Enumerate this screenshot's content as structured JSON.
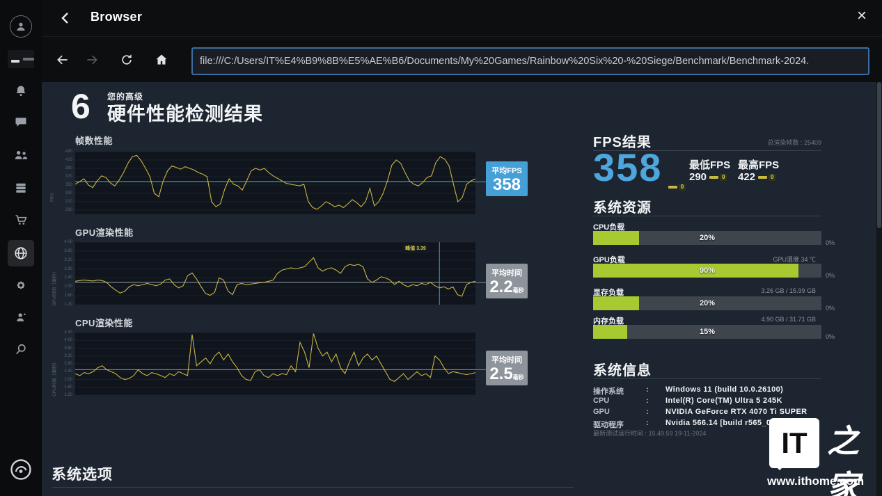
{
  "window": {
    "title": "Browser",
    "close_glyph": "×"
  },
  "nav": {
    "url": "file:///C:/Users/IT%E4%B9%8B%E5%AE%B6/Documents/My%20Games/Rainbow%20Six%20-%20Siege/Benchmark/Benchmark-2024."
  },
  "sidebar": {
    "items": [
      "avatar",
      "game-thumbnail",
      "notifications",
      "chat",
      "friends",
      "library",
      "store",
      "browser",
      "settings",
      "groups",
      "search",
      "ubisoft-logo"
    ],
    "active": "browser"
  },
  "header": {
    "logo_glyph": "6",
    "pre_title": "您的高级",
    "title": "硬件性能检测结果"
  },
  "chart_data": [
    {
      "type": "line",
      "title": "帧数性能",
      "ylabel": "FPS",
      "ylim": [
        280,
        430
      ],
      "yticks": [
        430,
        410,
        390,
        370,
        350,
        330,
        310,
        290
      ],
      "avg": 358,
      "line_color": "#c9b544",
      "avg_color": "#3ab0c5",
      "badge": {
        "style": "blue",
        "label": "平均FPS",
        "value": "358",
        "unit": ""
      },
      "values": [
        352,
        358,
        365,
        350,
        344,
        360,
        372,
        368,
        355,
        348,
        362,
        380,
        402,
        418,
        421,
        408,
        390,
        370,
        330,
        322,
        360,
        384,
        396,
        392,
        388,
        394,
        390,
        386,
        380,
        376,
        370,
        310,
        298,
        305,
        340,
        365,
        352,
        348,
        338,
        360,
        384,
        390,
        386,
        390,
        380,
        372,
        366,
        360,
        354,
        352,
        350,
        348,
        352,
        310,
        296,
        292,
        300,
        310,
        305,
        298,
        302,
        296,
        305,
        315,
        308,
        298,
        310,
        342,
        300,
        310,
        330,
        360,
        398,
        410,
        402,
        380,
        360,
        352,
        348,
        356,
        368,
        372,
        404,
        418,
        412,
        396,
        352,
        310,
        320,
        352,
        360,
        365
      ]
    },
    {
      "type": "line",
      "title": "GPU渲染性能",
      "ylabel": "GPU时间（毫秒）",
      "ylim": [
        1.2,
        4.0
      ],
      "yticks": [
        "4.00",
        "3.60",
        "3.20",
        "2.80",
        "2.40",
        "2.00",
        "1.60",
        "1.20"
      ],
      "avg": 2.2,
      "line_color": "#c9b544",
      "avg_color": "#7e858d",
      "marker": {
        "x_frac": 0.91,
        "label": "峰值 3.39"
      },
      "badge": {
        "style": "gray",
        "label": "平均时间",
        "value": "2.2",
        "unit": "毫秒"
      },
      "values": [
        2.25,
        2.28,
        2.3,
        2.28,
        2.26,
        2.3,
        2.28,
        2.2,
        2.0,
        1.85,
        1.72,
        1.8,
        2.0,
        2.1,
        2.05,
        2.1,
        2.15,
        2.1,
        2.05,
        2.12,
        2.3,
        2.35,
        2.1,
        1.95,
        2.05,
        2.5,
        2.62,
        2.35,
        2.0,
        1.7,
        1.62,
        1.75,
        2.4,
        2.3,
        1.8,
        1.65,
        2.1,
        2.15,
        2.1,
        2.12,
        2.15,
        2.18,
        2.2,
        2.25,
        2.3,
        2.6,
        2.75,
        2.8,
        2.85,
        2.8,
        2.85,
        2.9,
        3.1,
        3.3,
        2.85,
        2.7,
        2.8,
        2.85,
        2.75,
        2.6,
        2.9,
        3.0,
        2.95,
        3.0,
        2.9,
        2.35,
        2.2,
        2.3,
        2.45,
        2.4,
        2.3,
        2.1,
        2.25,
        2.1,
        2.0,
        2.1,
        2.05,
        2.15,
        2.1,
        2.2,
        2.05,
        1.95,
        2.0,
        1.9,
        2.0,
        1.65,
        1.58,
        2.1,
        2.2,
        2.25
      ]
    },
    {
      "type": "line",
      "title": "CPU渲染性能",
      "ylabel": "CPU时间（毫秒）",
      "ylim": [
        1.2,
        4.4
      ],
      "yticks": [
        "4.40",
        "4.00",
        "3.60",
        "3.20",
        "2.80",
        "2.40",
        "2.00",
        "1.60",
        "1.20"
      ],
      "avg": 2.5,
      "line_color": "#c9b544",
      "avg_color": "#7e858d",
      "badge": {
        "style": "gray",
        "label": "平均时间",
        "value": "2.5",
        "unit": "毫秒"
      },
      "values": [
        2.3,
        2.2,
        2.35,
        2.3,
        2.4,
        2.6,
        2.7,
        2.5,
        2.4,
        2.3,
        2.1,
        2.0,
        2.05,
        2.2,
        2.5,
        2.3,
        2.2,
        2.35,
        2.3,
        2.2,
        2.1,
        2.3,
        2.2,
        2.4,
        2.3,
        2.2,
        4.3,
        2.7,
        2.9,
        3.1,
        2.8,
        3.2,
        3.4,
        3.0,
        3.3,
        2.9,
        2.6,
        2.2,
        2.0,
        1.95,
        2.4,
        2.5,
        2.2,
        2.1,
        2.3,
        2.2,
        2.3,
        2.25,
        2.7,
        2.4,
        3.9,
        3.4,
        2.6,
        4.35,
        3.6,
        3.2,
        3.4,
        2.9,
        3.3,
        2.6,
        2.3,
        2.9,
        3.4,
        2.7,
        3.1,
        3.3,
        3.0,
        3.2,
        2.8,
        2.4,
        2.0,
        1.9,
        2.1,
        2.3,
        2.0,
        2.2,
        2.4,
        2.2,
        2.3,
        2.1,
        3.2,
        3.0,
        2.6,
        2.3,
        2.4,
        2.35,
        2.3,
        2.25,
        2.3,
        2.35
      ]
    }
  ],
  "fps_panel": {
    "heading": "FPS结果",
    "total_label": "总渲染帧数 : 25409",
    "average": "358",
    "min_label": "最低FPS",
    "max_label": "最高FPS",
    "min": "290",
    "max": "422",
    "delta": "0"
  },
  "resources": {
    "heading": "系统资源",
    "bars": [
      {
        "label": "CPU负载",
        "percent": 20,
        "display": "20%",
        "right": "",
        "outer": "0%"
      },
      {
        "label": "GPU负载",
        "percent": 90,
        "display": "90%",
        "right": "GPU温度 34 ℃",
        "outer": "0%"
      },
      {
        "label": "显存负载",
        "percent": 20,
        "display": "20%",
        "right": "3.26 GB / 15.99 GB",
        "outer": "0%"
      },
      {
        "label": "内存负载",
        "percent": 15,
        "display": "15%",
        "right": "4.90 GB / 31.71 GB",
        "outer": "0%"
      }
    ]
  },
  "system_info": {
    "heading": "系统信息",
    "colon": ":",
    "rows": [
      {
        "label": "操作系统",
        "value": "Windows 11 (build 10.0.26100)"
      },
      {
        "label": "CPU",
        "value": "Intel(R) Core(TM) Ultra 5 245K"
      },
      {
        "label": "GPU",
        "value": "NVIDIA GeForce RTX 4070 Ti SUPER"
      },
      {
        "label": "驱动程序",
        "value": "Nvidia 566.14 [build r565_00]"
      }
    ],
    "timestamp": "最新测试运行时间 : 15.49.59 19-11-2024"
  },
  "footer": {
    "system_options": "系统选项"
  },
  "watermark": {
    "logo_text": "IT",
    "logo_cn": "之家",
    "url": "www.ithome.com"
  }
}
